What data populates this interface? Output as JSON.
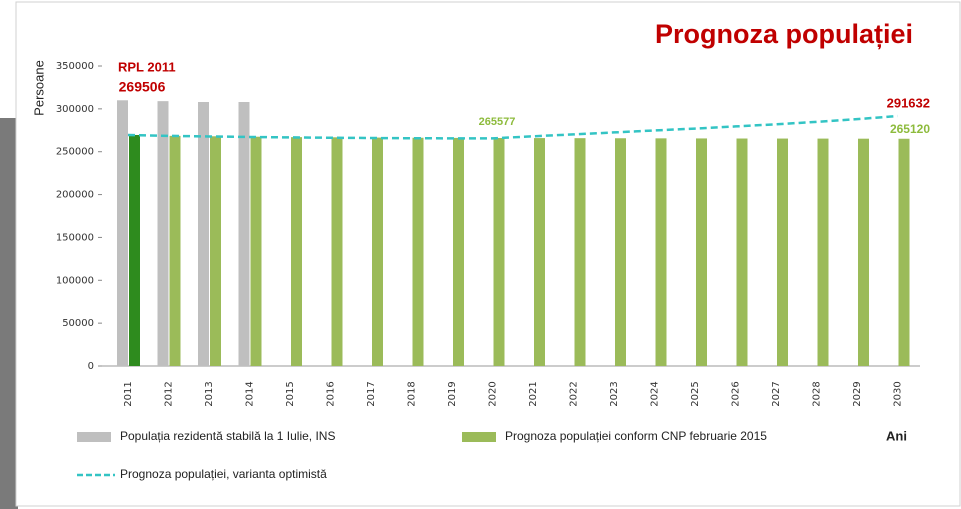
{
  "chart_data": {
    "type": "bar",
    "title": "Prognoza populației",
    "ylabel": "Persoane",
    "xlabel": "Ani",
    "categories": [
      "2011",
      "2012",
      "2013",
      "2014",
      "2015",
      "2016",
      "2017",
      "2018",
      "2019",
      "2020",
      "2021",
      "2022",
      "2023",
      "2024",
      "2025",
      "2026",
      "2027",
      "2028",
      "2029",
      "2030"
    ],
    "series": [
      {
        "name": "Populația rezidentă stabilă la 1 Iulie, INS",
        "type": "bar",
        "color": "#bfbfbf",
        "values": [
          310000,
          309000,
          308000,
          308000,
          null,
          null,
          null,
          null,
          null,
          null,
          null,
          null,
          null,
          null,
          null,
          null,
          null,
          null,
          null,
          null
        ]
      },
      {
        "name": "Prognoza populației conform CNP februarie 2015",
        "type": "bar",
        "color": "#9bbb59",
        "colors": [
          "#2e8b1e",
          "#9bbb59",
          "#9bbb59",
          "#9bbb59",
          "#9bbb59",
          "#9bbb59",
          "#9bbb59",
          "#9bbb59",
          "#9bbb59",
          "#9bbb59",
          "#9bbb59",
          "#9bbb59",
          "#9bbb59",
          "#9bbb59",
          "#9bbb59",
          "#9bbb59",
          "#9bbb59",
          "#9bbb59",
          "#9bbb59",
          "#9bbb59"
        ],
        "values": [
          269506,
          268500,
          268000,
          267500,
          267000,
          266800,
          266500,
          266300,
          266100,
          266000,
          265900,
          265800,
          265700,
          265600,
          265500,
          265400,
          265350,
          265300,
          265200,
          265120
        ]
      },
      {
        "name": "Prognoza populației, varianta optimistă",
        "type": "line",
        "color": "#33c4c4",
        "values": [
          269506,
          268500,
          267800,
          267200,
          266700,
          266300,
          266000,
          265700,
          265600,
          265577,
          268000,
          270200,
          272500,
          274800,
          277000,
          279500,
          282000,
          284800,
          288000,
          291632
        ]
      }
    ],
    "annotations": [
      "RPL 2011"
    ],
    "labels": [
      {
        "series": 1,
        "index": 0,
        "color": "#c00000"
      },
      {
        "series": 2,
        "index": 9,
        "color": "#8dbb3c"
      },
      {
        "series": 2,
        "index": 19,
        "color": "#c00000"
      },
      {
        "series": 1,
        "index": 19,
        "color": "#8dbb3c"
      }
    ],
    "ylim": [
      0,
      350000
    ],
    "yticks": [
      0,
      50000,
      100000,
      150000,
      200000,
      250000,
      300000,
      350000
    ]
  }
}
